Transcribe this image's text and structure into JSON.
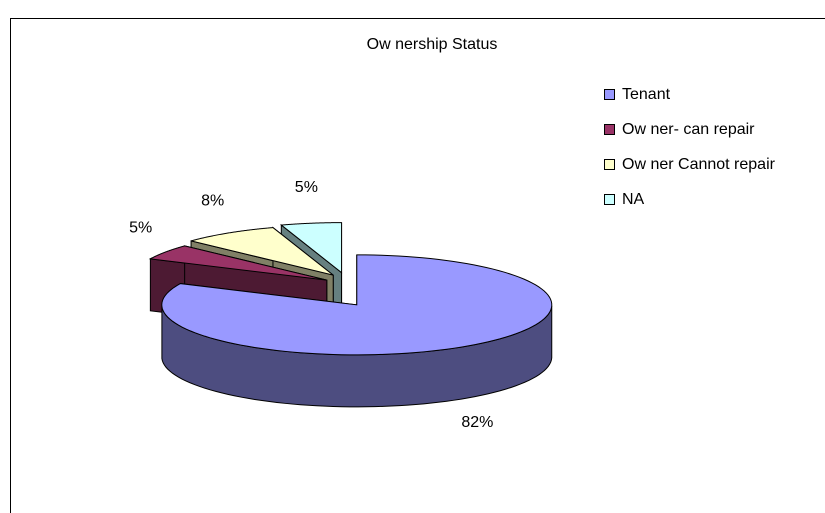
{
  "chart_data": {
    "type": "pie",
    "title": "Ow nership Status",
    "categories": [
      "Tenant",
      "Ow ner- can repair",
      "Ow ner Cannot repair",
      "NA"
    ],
    "values": [
      82,
      5,
      8,
      5
    ],
    "value_labels": [
      "82%",
      "5%",
      "8%",
      "5%"
    ],
    "colors": [
      "#9999ff",
      "#993366",
      "#ffffcc",
      "#ccffff"
    ],
    "legend": "right"
  }
}
